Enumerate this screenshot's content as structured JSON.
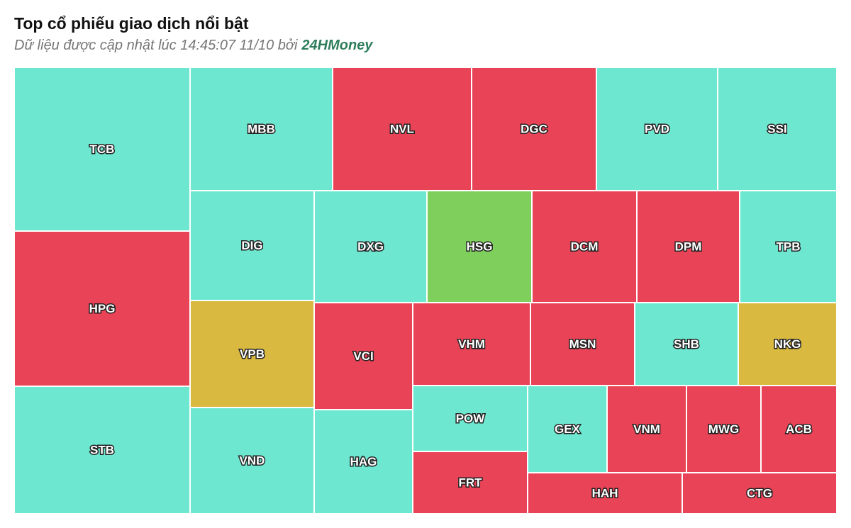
{
  "header": {
    "title": "Top cổ phiếu giao dịch nổi bật",
    "subtitle": "Dữ liệu được cập nhật lúc 14:45:07 11/10 bởi",
    "brand": "24HMoney"
  },
  "tiles": [
    {
      "label": "TCB",
      "color": "#6ee7d0"
    },
    {
      "label": "HPG",
      "color": "#e84356"
    },
    {
      "label": "STB",
      "color": "#6ee7d0"
    },
    {
      "label": "MBB",
      "color": "#6ee7d0"
    },
    {
      "label": "NVL",
      "color": "#e84356"
    },
    {
      "label": "DGC",
      "color": "#e84356"
    },
    {
      "label": "PVD",
      "color": "#6ee7d0"
    },
    {
      "label": "SSI",
      "color": "#6ee7d0"
    },
    {
      "label": "DIG",
      "color": "#6ee7d0"
    },
    {
      "label": "DXG",
      "color": "#6ee7d0"
    },
    {
      "label": "HSG",
      "color": "#7ecf5b"
    },
    {
      "label": "DCM",
      "color": "#e84356"
    },
    {
      "label": "DPM",
      "color": "#e84356"
    },
    {
      "label": "TPB",
      "color": "#6ee7d0"
    },
    {
      "label": "VPB",
      "color": "#d9b93f"
    },
    {
      "label": "VND",
      "color": "#6ee7d0"
    },
    {
      "label": "VCI",
      "color": "#e84356"
    },
    {
      "label": "HAG",
      "color": "#6ee7d0"
    },
    {
      "label": "VHM",
      "color": "#e84356"
    },
    {
      "label": "MSN",
      "color": "#e84356"
    },
    {
      "label": "SHB",
      "color": "#6ee7d0"
    },
    {
      "label": "NKG",
      "color": "#d9b93f"
    },
    {
      "label": "POW",
      "color": "#6ee7d0"
    },
    {
      "label": "FRT",
      "color": "#e84356"
    },
    {
      "label": "GEX",
      "color": "#6ee7d0"
    },
    {
      "label": "VNM",
      "color": "#e84356"
    },
    {
      "label": "MWG",
      "color": "#e84356"
    },
    {
      "label": "ACB",
      "color": "#e84356"
    },
    {
      "label": "HAH",
      "color": "#e84356"
    },
    {
      "label": "CTG",
      "color": "#e84356"
    }
  ]
}
